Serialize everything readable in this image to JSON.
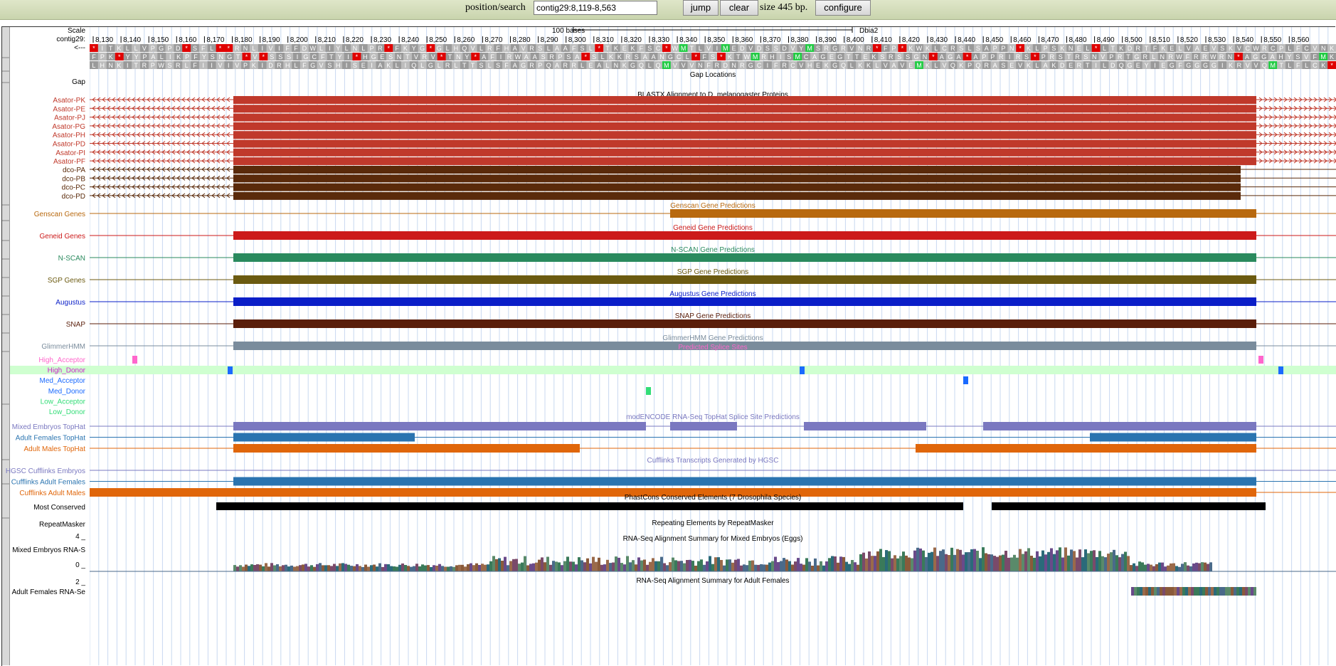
{
  "toolbar": {
    "position_label": "position/search",
    "position_value": "contig29:8,119-8,563",
    "jump_label": "jump",
    "clear_label": "clear",
    "size_text": "size 445 bp.",
    "configure_label": "configure"
  },
  "colors": {
    "toolbar_bg": "#d2dcb8",
    "asator": "#c0392b",
    "dco": "#5a2a0a",
    "genscan": "#b8690f",
    "geneid": "#cc1a1a",
    "nscan": "#2a8a5e",
    "sgp": "#6b5a10",
    "augustus": "#0a1ec8",
    "snap": "#5a1e0a",
    "glimmer": "#7a8c9c",
    "splice_pink": "#ff66cc",
    "splice_blue": "#1a6aff",
    "splice_green": "#33dd77",
    "tophat_embryo": "#7a78c0",
    "tophat_female": "#2a74b0",
    "tophat_male": "#e0660a",
    "conserved": "#000000",
    "highlight_row": "#cfffd0"
  },
  "ruler": {
    "scale_label": "Scale",
    "contig_label": "contig29:",
    "bases_text": "100 bases",
    "assembly": "Dbia2",
    "strand_label": "<---",
    "ticks": [
      "8,130",
      "8,140",
      "8,150",
      "8,160",
      "8,170",
      "8,180",
      "8,190",
      "8,200",
      "8,210",
      "8,220",
      "8,230",
      "8,240",
      "8,250",
      "8,260",
      "8,270",
      "8,280",
      "8,290",
      "8,300",
      "8,310",
      "8,320",
      "8,330",
      "8,340",
      "8,350",
      "8,360",
      "8,370",
      "8,380",
      "8,390",
      "8,400",
      "8,410",
      "8,420",
      "8,430",
      "8,440",
      "8,450",
      "8,460",
      "8,470",
      "8,480",
      "8,490",
      "8,500",
      "8,510",
      "8,520",
      "8,530",
      "8,540",
      "8,550",
      "8,560"
    ],
    "frame1": "*ITKLLVPGPD*SFL**RNLIVIFFDWLIYLNLPR*FKYG*GLHQVLRFHAVRSLAAFSL*TKEKFSC*WMTLVIMEDVDSSDVYMSRGRVNR*FP*KWKLCRSLSAPPN*KLPSKNEL*LTKDRTFKELVAEVSKVCWRCPLFCVNK",
    "frame2": "FPK*YYPALIKPFYSNGT*V*SSSIGCFTYI*HGESNTVRV*TNY*AFIRWAASRPSA*SLKKRSAANGCL*FS*KTWMRHISMCAGEGTTEKSRSSGN*AGA*APPRIRS*PRSTRSNVPRTGRLNRWFRRWRN*AGGAHYSVFMK",
    "frame3": "LHNKITRPWSRLFIIVIVPKIDRHLFGVSHISEIAKLIQLGLRLTTSLSFAGRPQARRLEALNKGQLQMVVVNFRDNRGCIFRCVHEKGQLKKLVAVEMKLVQKPQRASEVKLAKDERTILDQGEYIEGFGGGGIKRVVQMTLFLCK*"
  },
  "tracks": {
    "gap": {
      "label": "Gap",
      "title": "Gap Locations"
    },
    "blastx": {
      "title": "BLASTX Alignment to D. melanogaster Proteins",
      "asator_rows": [
        "Asator-PK",
        "Asator-PE",
        "Asator-PJ",
        "Asator-PG",
        "Asator-PH",
        "Asator-PD",
        "Asator-PI",
        "Asator-PF"
      ],
      "dco_rows": [
        "dco-PA",
        "dco-PB",
        "dco-PC",
        "dco-PD"
      ]
    },
    "genscan": {
      "label": "Genscan Genes",
      "title": "Genscan Gene Predictions"
    },
    "geneid": {
      "label": "Geneid Genes",
      "title": "Geneid Gene Predictions"
    },
    "nscan": {
      "label": "N-SCAN",
      "title": "N-SCAN Gene Predictions"
    },
    "sgp": {
      "label": "SGP Genes",
      "title": "SGP Gene Predictions"
    },
    "augustus": {
      "label": "Augustus",
      "title": "Augustus Gene Predictions"
    },
    "snap": {
      "label": "SNAP",
      "title": "SNAP Gene Predictions"
    },
    "glimmer": {
      "label": "GlimmerHMM",
      "title": "GlimmerHMM Gene Predictions"
    },
    "splice": {
      "title": "Predicted Splice Sites",
      "rows": [
        "High_Acceptor",
        "High_Donor",
        "Med_Acceptor",
        "Med_Donor",
        "Low_Acceptor",
        "Low_Donor"
      ]
    },
    "tophat": {
      "title": "modENCODE RNA-Seq TopHat Splice Site Predictions",
      "rows": [
        "Mixed Embryos TopHat",
        "Adult Females TopHat",
        "Adult Males TopHat"
      ]
    },
    "cufflinks": {
      "title": "Cufflinks Transcripts Generated by HGSC",
      "rows": [
        "HGSC Cufflinks Embryos",
        "Cufflinks Adult Females",
        "Cufflinks Adult Males"
      ]
    },
    "conserved": {
      "label": "Most Conserved",
      "title": "PhastCons Conserved Elements (7 Drosophila Species)"
    },
    "repeat": {
      "label": "RepeatMasker",
      "title": "Repeating Elements by RepeatMasker"
    },
    "rnaseq_embryo": {
      "label": "Mixed Embryos RNA-S",
      "title": "RNA-Seq Alignment Summary for Mixed Embryos (Eggs)",
      "ymax": "4 _",
      "ymin": "0 _"
    },
    "rnaseq_female": {
      "label": "Adult Females RNA-Se",
      "title": "RNA-Seq Alignment Summary for Adult Females",
      "ymax": "2 _"
    }
  }
}
